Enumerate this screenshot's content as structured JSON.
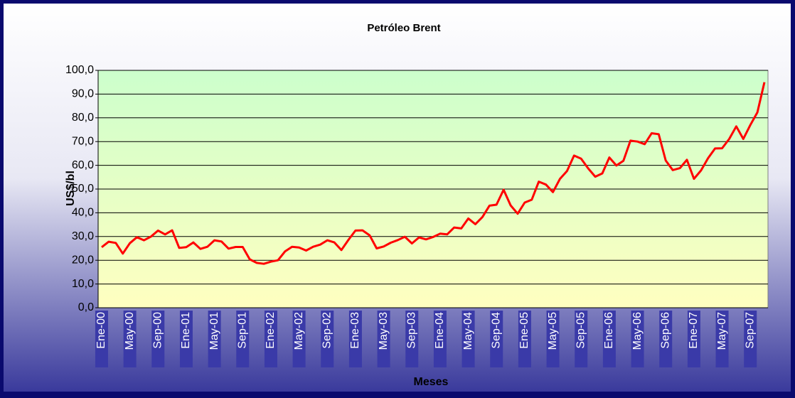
{
  "chart_data": {
    "type": "line",
    "title": "Petróleo Brent",
    "x_label": "Meses",
    "y_label": "US$/bl",
    "categories": [
      "Ene-00",
      null,
      null,
      null,
      "May-00",
      null,
      null,
      null,
      "Sep-00",
      null,
      null,
      null,
      "Ene-01",
      null,
      null,
      null,
      "May-01",
      null,
      null,
      null,
      "Sep-01",
      null,
      null,
      null,
      "Ene-02",
      null,
      null,
      null,
      "May-02",
      null,
      null,
      null,
      "Sep-02",
      null,
      null,
      null,
      "Ene-03",
      null,
      null,
      null,
      "May-03",
      null,
      null,
      null,
      "Sep-03",
      null,
      null,
      null,
      "Ene-04",
      null,
      null,
      null,
      "May-04",
      null,
      null,
      null,
      "Sep-04",
      null,
      null,
      null,
      "Ene-05",
      null,
      null,
      null,
      "May-05",
      null,
      null,
      null,
      "Sep-05",
      null,
      null,
      null,
      "Ene-06",
      null,
      null,
      null,
      "May-06",
      null,
      null,
      null,
      "Sep-06",
      null,
      null,
      null,
      "Ene-07",
      null,
      null,
      null,
      "May-07",
      null,
      null,
      null,
      "Sep-07",
      null,
      null
    ],
    "values": [
      25.5,
      27.8,
      27.3,
      22.8,
      27.2,
      29.7,
      28.4,
      30.0,
      32.5,
      30.9,
      32.6,
      25.2,
      25.5,
      27.5,
      24.8,
      25.7,
      28.4,
      27.9,
      24.9,
      25.6,
      25.6,
      20.4,
      18.9,
      18.5,
      19.4,
      20.0,
      23.7,
      25.7,
      25.4,
      24.1,
      25.7,
      26.6,
      28.4,
      27.5,
      24.3,
      28.6,
      32.5,
      32.6,
      30.5,
      25.0,
      25.8,
      27.4,
      28.5,
      29.9,
      27.1,
      29.6,
      28.8,
      29.8,
      31.2,
      30.9,
      33.8,
      33.4,
      37.6,
      35.2,
      38.2,
      43.0,
      43.4,
      49.7,
      43.1,
      39.6,
      44.3,
      45.5,
      53.1,
      51.9,
      48.7,
      54.3,
      57.6,
      64.1,
      62.8,
      58.7,
      55.2,
      56.6,
      63.3,
      59.9,
      61.9,
      70.4,
      70.0,
      68.9,
      73.5,
      73.1,
      62.0,
      58.0,
      58.8,
      62.3,
      54.3,
      57.8,
      63.0,
      67.1,
      67.2,
      71.1,
      76.4,
      71.1,
      77.0,
      82.3,
      95.0
    ],
    "color": "#ff0000",
    "ylim": [
      0,
      100
    ],
    "yticks": [
      {
        "value": 0,
        "label": "0,0"
      },
      {
        "value": 10,
        "label": "10,0"
      },
      {
        "value": 20,
        "label": "20,0"
      },
      {
        "value": 30,
        "label": "30,0"
      },
      {
        "value": 40,
        "label": "40,0"
      },
      {
        "value": 50,
        "label": "50,0"
      },
      {
        "value": 60,
        "label": "60,0"
      },
      {
        "value": 70,
        "label": "70,0"
      },
      {
        "value": 80,
        "label": "80,0"
      },
      {
        "value": 90,
        "label": "90,0"
      },
      {
        "value": 100,
        "label": "100,0"
      }
    ],
    "grid": true
  }
}
